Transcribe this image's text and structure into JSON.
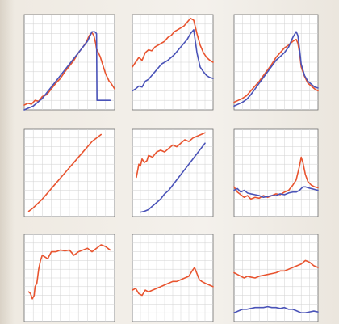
{
  "colors": {
    "red": "#e8542f",
    "blue": "#4a53b8"
  },
  "chart_data": [
    {
      "type": "line",
      "panel": 1,
      "grid": true,
      "xlim": [
        0,
        100
      ],
      "ylim": [
        0,
        100
      ],
      "x_ticks": [],
      "y_ticks": [],
      "series": [
        {
          "color": "red",
          "x": [
            0,
            4,
            8,
            12,
            16,
            20,
            25,
            30,
            35,
            40,
            45,
            50,
            55,
            60,
            65,
            68,
            70,
            72,
            74,
            75,
            77,
            79,
            80,
            82,
            84,
            86,
            88,
            90,
            92,
            94,
            96,
            98,
            100
          ],
          "y": [
            5,
            7,
            6,
            10,
            9,
            14,
            16,
            22,
            28,
            33,
            40,
            46,
            52,
            60,
            66,
            70,
            74,
            78,
            80,
            81,
            78,
            70,
            64,
            60,
            56,
            50,
            44,
            38,
            34,
            30,
            28,
            25,
            22
          ]
        },
        {
          "color": "blue",
          "x": [
            0,
            5,
            10,
            15,
            20,
            25,
            30,
            35,
            40,
            45,
            50,
            55,
            60,
            65,
            70,
            74,
            75,
            78,
            80,
            80.5,
            81,
            95
          ],
          "y": [
            0,
            2,
            4,
            8,
            12,
            18,
            24,
            30,
            36,
            42,
            48,
            54,
            60,
            66,
            72,
            80,
            82,
            82,
            80,
            10,
            10,
            10
          ]
        }
      ]
    },
    {
      "type": "line",
      "panel": 2,
      "grid": true,
      "xlim": [
        0,
        100
      ],
      "ylim": [
        0,
        100
      ],
      "x_ticks": [],
      "y_ticks": [],
      "series": [
        {
          "color": "red",
          "x": [
            0,
            4,
            8,
            12,
            16,
            20,
            24,
            28,
            32,
            36,
            40,
            44,
            48,
            52,
            56,
            60,
            64,
            68,
            72,
            76,
            80,
            84,
            88,
            92,
            96,
            100
          ],
          "y": [
            45,
            50,
            55,
            52,
            60,
            63,
            62,
            66,
            68,
            70,
            72,
            76,
            78,
            82,
            84,
            86,
            88,
            92,
            96,
            94,
            80,
            68,
            60,
            55,
            52,
            50
          ]
        },
        {
          "color": "blue",
          "x": [
            0,
            4,
            8,
            12,
            16,
            20,
            24,
            28,
            32,
            36,
            40,
            44,
            48,
            52,
            56,
            60,
            64,
            68,
            72,
            76,
            80,
            84,
            88,
            92,
            96,
            100
          ],
          "y": [
            20,
            22,
            25,
            24,
            30,
            32,
            36,
            40,
            44,
            48,
            50,
            52,
            55,
            58,
            62,
            66,
            70,
            74,
            80,
            84,
            60,
            45,
            40,
            36,
            34,
            33
          ]
        }
      ]
    },
    {
      "type": "line",
      "panel": 3,
      "grid": true,
      "xlim": [
        0,
        100
      ],
      "ylim": [
        0,
        100
      ],
      "x_ticks": [],
      "y_ticks": [],
      "series": [
        {
          "color": "red",
          "x": [
            0,
            5,
            10,
            15,
            20,
            25,
            30,
            35,
            40,
            45,
            50,
            55,
            60,
            65,
            70,
            74,
            76,
            78,
            80,
            84,
            88,
            92,
            96,
            100
          ],
          "y": [
            8,
            10,
            12,
            15,
            20,
            25,
            30,
            36,
            42,
            48,
            55,
            60,
            65,
            68,
            72,
            74,
            70,
            60,
            45,
            35,
            28,
            25,
            22,
            20
          ]
        },
        {
          "color": "blue",
          "x": [
            0,
            5,
            10,
            15,
            20,
            25,
            30,
            35,
            40,
            45,
            50,
            55,
            60,
            65,
            70,
            74,
            76,
            78,
            80,
            84,
            88,
            92,
            96,
            100
          ],
          "y": [
            4,
            6,
            8,
            11,
            16,
            22,
            28,
            34,
            40,
            46,
            52,
            56,
            60,
            66,
            76,
            82,
            78,
            64,
            48,
            36,
            30,
            27,
            24,
            23
          ]
        }
      ]
    },
    {
      "type": "line",
      "panel": 4,
      "grid": true,
      "xlim": [
        0,
        100
      ],
      "ylim": [
        0,
        100
      ],
      "x_ticks": [],
      "y_ticks": [],
      "series": [
        {
          "color": "red",
          "x": [
            5,
            10,
            15,
            20,
            25,
            30,
            35,
            40,
            45,
            50,
            55,
            60,
            65,
            70,
            75,
            80,
            85
          ],
          "y": [
            6,
            10,
            15,
            20,
            26,
            32,
            38,
            44,
            50,
            56,
            62,
            68,
            74,
            80,
            86,
            90,
            94
          ]
        }
      ]
    },
    {
      "type": "line",
      "panel": 5,
      "grid": true,
      "xlim": [
        0,
        100
      ],
      "ylim": [
        0,
        100
      ],
      "x_ticks": [],
      "y_ticks": [],
      "series": [
        {
          "color": "red",
          "x": [
            5,
            8,
            10,
            12,
            15,
            18,
            20,
            25,
            30,
            35,
            40,
            45,
            50,
            55,
            60,
            65,
            70,
            75,
            80,
            85,
            90
          ],
          "y": [
            45,
            60,
            58,
            66,
            62,
            64,
            70,
            68,
            74,
            76,
            74,
            78,
            82,
            80,
            84,
            88,
            86,
            90,
            92,
            94,
            96
          ]
        },
        {
          "color": "blue",
          "x": [
            10,
            15,
            20,
            25,
            30,
            35,
            40,
            45,
            50,
            55,
            60,
            65,
            70,
            75,
            80,
            85,
            90
          ],
          "y": [
            5,
            6,
            8,
            12,
            16,
            20,
            26,
            30,
            36,
            42,
            48,
            54,
            60,
            66,
            72,
            78,
            84
          ]
        }
      ]
    },
    {
      "type": "line",
      "panel": 6,
      "grid": true,
      "xlim": [
        0,
        100
      ],
      "ylim": [
        0,
        100
      ],
      "x_ticks": [],
      "y_ticks": [],
      "series": [
        {
          "color": "red",
          "x": [
            0,
            4,
            8,
            12,
            16,
            20,
            25,
            30,
            35,
            40,
            45,
            50,
            55,
            60,
            65,
            70,
            74,
            78,
            80,
            82,
            85,
            88,
            92,
            96,
            100
          ],
          "y": [
            34,
            28,
            25,
            22,
            24,
            20,
            22,
            21,
            24,
            22,
            24,
            26,
            25,
            28,
            30,
            36,
            42,
            58,
            68,
            62,
            48,
            40,
            36,
            34,
            33
          ]
        },
        {
          "color": "blue",
          "x": [
            0,
            4,
            8,
            12,
            16,
            20,
            25,
            30,
            35,
            40,
            45,
            50,
            55,
            60,
            65,
            70,
            74,
            78,
            80,
            82,
            85,
            88,
            92,
            96,
            100
          ],
          "y": [
            30,
            32,
            28,
            30,
            27,
            26,
            25,
            24,
            22,
            23,
            24,
            24,
            26,
            25,
            27,
            28,
            28,
            30,
            32,
            34,
            34,
            33,
            32,
            31,
            30
          ]
        }
      ]
    },
    {
      "type": "line",
      "panel": 7,
      "grid": true,
      "xlim": [
        0,
        100
      ],
      "ylim": [
        0,
        100
      ],
      "x_ticks": [],
      "y_ticks": [],
      "series": [
        {
          "color": "red",
          "x": [
            5,
            7,
            9,
            11,
            12,
            14,
            16,
            18,
            20,
            23,
            26,
            30,
            35,
            40,
            45,
            50,
            55,
            60,
            65,
            70,
            75,
            80,
            85,
            90,
            95
          ],
          "y": [
            34,
            32,
            26,
            30,
            40,
            44,
            60,
            70,
            76,
            74,
            72,
            80,
            80,
            82,
            81,
            82,
            76,
            80,
            82,
            84,
            80,
            84,
            88,
            86,
            82
          ]
        }
      ]
    },
    {
      "type": "line",
      "panel": 8,
      "grid": true,
      "xlim": [
        0,
        100
      ],
      "ylim": [
        0,
        100
      ],
      "x_ticks": [],
      "y_ticks": [],
      "series": [
        {
          "color": "red",
          "x": [
            0,
            4,
            8,
            12,
            16,
            20,
            25,
            30,
            35,
            40,
            45,
            50,
            55,
            60,
            65,
            70,
            74,
            77,
            80,
            83,
            86,
            90,
            95,
            100
          ],
          "y": [
            36,
            38,
            32,
            30,
            36,
            34,
            36,
            38,
            40,
            42,
            44,
            46,
            46,
            48,
            50,
            52,
            58,
            62,
            55,
            48,
            46,
            44,
            42,
            40
          ]
        }
      ]
    },
    {
      "type": "line",
      "panel": 9,
      "grid": true,
      "xlim": [
        0,
        100
      ],
      "ylim": [
        0,
        100
      ],
      "x_ticks": [],
      "y_ticks": [],
      "series": [
        {
          "color": "red",
          "x": [
            0,
            4,
            8,
            12,
            16,
            20,
            25,
            30,
            35,
            40,
            45,
            50,
            55,
            60,
            65,
            70,
            75,
            80,
            85,
            90,
            95,
            100
          ],
          "y": [
            56,
            54,
            52,
            50,
            52,
            51,
            50,
            52,
            53,
            54,
            55,
            56,
            58,
            58,
            60,
            62,
            64,
            66,
            70,
            68,
            64,
            62
          ]
        },
        {
          "color": "blue",
          "x": [
            0,
            5,
            10,
            15,
            20,
            25,
            30,
            35,
            40,
            45,
            50,
            55,
            60,
            65,
            70,
            75,
            80,
            85,
            90,
            95,
            100
          ],
          "y": [
            10,
            12,
            14,
            14,
            15,
            16,
            16,
            16,
            17,
            16,
            16,
            15,
            16,
            14,
            14,
            12,
            10,
            10,
            11,
            12,
            11
          ]
        }
      ]
    }
  ]
}
